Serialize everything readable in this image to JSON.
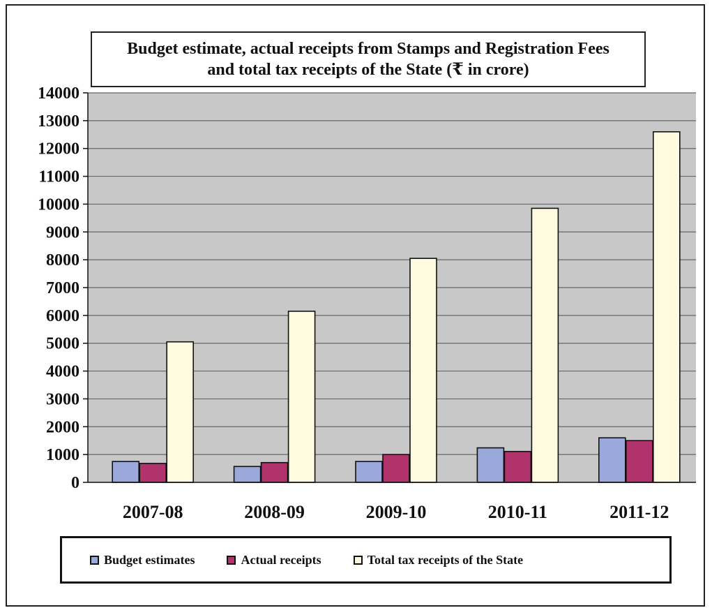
{
  "chart_data": {
    "type": "bar",
    "title_line1": "Budget estimate, actual receipts from Stamps and Registration Fees",
    "title_line2": "and total  tax receipts of the State (₹ in crore)",
    "categories": [
      "2007-08",
      "2008-09",
      "2009-10",
      "2010-11",
      "2011-12"
    ],
    "series": [
      {
        "name": "Budget estimates",
        "values": [
          750,
          570,
          750,
          1240,
          1600
        ],
        "color": "#9aa8dc"
      },
      {
        "name": "Actual receipts",
        "values": [
          680,
          710,
          1000,
          1110,
          1500
        ],
        "color": "#b0336b"
      },
      {
        "name": "Total tax receipts of the State",
        "values": [
          5050,
          6150,
          8050,
          9850,
          12600
        ],
        "color": "#fffae0"
      }
    ],
    "ylim": [
      0,
      14000
    ],
    "yticks": [
      0,
      1000,
      2000,
      3000,
      4000,
      5000,
      6000,
      7000,
      8000,
      9000,
      10000,
      11000,
      12000,
      13000,
      14000
    ],
    "grid": true,
    "legend_position": "bottom",
    "plot_background": "#c8c8c8"
  }
}
